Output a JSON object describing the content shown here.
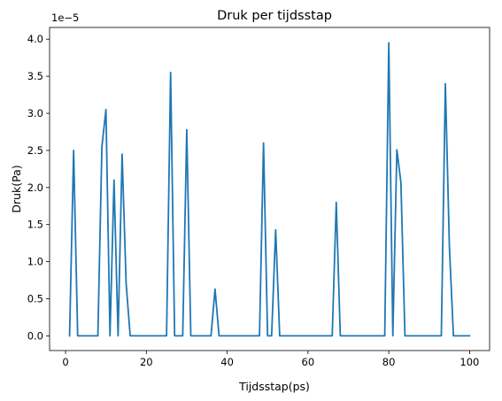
{
  "chart_data": {
    "type": "line",
    "title": "Druk per tijdsstap",
    "xlabel": "Tijdsstap(ps)",
    "ylabel": "Druk(Pa)",
    "offset_text": "1e−5",
    "xlim": [
      -3.95,
      104.95
    ],
    "ylim": [
      -0.198,
      4.158
    ],
    "scale_exponent": -5,
    "xticks": [
      0,
      20,
      40,
      60,
      80,
      100
    ],
    "xtick_labels": [
      "0",
      "20",
      "40",
      "60",
      "80",
      "100"
    ],
    "yticks": [
      0.0,
      0.5,
      1.0,
      1.5,
      2.0,
      2.5,
      3.0,
      3.5,
      4.0
    ],
    "ytick_labels": [
      "0.0",
      "0.5",
      "1.0",
      "1.5",
      "2.0",
      "2.5",
      "3.0",
      "3.5",
      "4.0"
    ],
    "grid": false,
    "series": [
      {
        "color": "#1f77b4",
        "x": [
          1,
          2,
          3,
          8,
          9,
          10,
          11,
          12,
          13,
          14,
          15,
          16,
          25,
          26,
          27,
          29,
          30,
          31,
          36,
          37,
          38,
          48,
          49,
          50,
          51,
          52,
          53,
          66,
          67,
          68,
          79,
          80,
          81,
          82,
          83,
          84,
          93,
          94,
          95,
          96,
          99,
          100
        ],
        "y": [
          0,
          2.5,
          0,
          0,
          2.55,
          3.05,
          0,
          2.1,
          0,
          2.45,
          0.7,
          0,
          0,
          3.55,
          0,
          0,
          2.78,
          0,
          0,
          0.63,
          0,
          0,
          2.6,
          0,
          0,
          1.43,
          0,
          0,
          1.8,
          0,
          0,
          3.95,
          0,
          2.51,
          2.07,
          0,
          0,
          3.4,
          1.2,
          0,
          0,
          0
        ]
      }
    ]
  }
}
